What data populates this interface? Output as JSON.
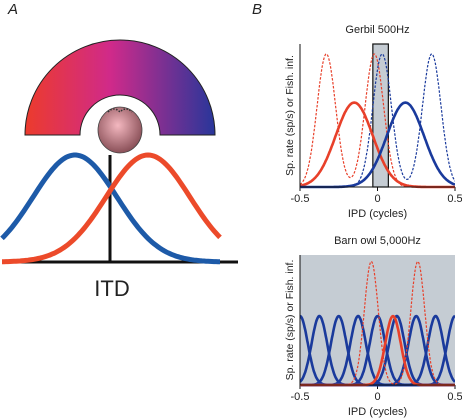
{
  "panel_labels": [
    "A",
    "B"
  ],
  "diagram": {
    "label": "ITD"
  },
  "chart_data": [
    {
      "type": "line",
      "title": "Gerbil 500Hz",
      "xlabel": "IPD (cycles)",
      "ylabel": "Sp. rate (sp/s) or Fish. inf.",
      "xlim": [
        -0.5,
        0.5
      ],
      "xticks": [
        -0.5,
        0,
        0.5
      ],
      "ylim": [
        0,
        1
      ],
      "shade": [
        -0.03,
        0.07
      ],
      "shade_color": "#c5ccd3",
      "series": [
        {
          "color": "#e8402a",
          "dashed": true,
          "width": 0.06,
          "peaks": [
            {
              "x": -0.33,
              "y": 0.93
            },
            {
              "x": -0.02,
              "y": 0.93
            }
          ]
        },
        {
          "color": "#1a3a9c",
          "dashed": true,
          "width": 0.06,
          "peaks": [
            {
              "x": 0.03,
              "y": 0.93
            },
            {
              "x": 0.35,
              "y": 0.93
            }
          ]
        },
        {
          "color": "#e8402a",
          "dashed": false,
          "width": 0.12,
          "peaks": [
            {
              "x": -0.15,
              "y": 0.59
            }
          ]
        },
        {
          "color": "#1a3a9c",
          "dashed": false,
          "width": 0.12,
          "peaks": [
            {
              "x": 0.18,
              "y": 0.59
            }
          ]
        }
      ]
    },
    {
      "type": "line",
      "title": "Barn owl 5,000Hz",
      "xlabel": "IPD (cycles)",
      "ylabel": "Sp. rate (sp/s) or Fish. inf.",
      "xlim": [
        -0.5,
        0.5
      ],
      "xticks": [
        -0.5,
        0,
        0.5
      ],
      "ylim": [
        0,
        1
      ],
      "background": "#c5ccd3",
      "series": [
        {
          "color": "#1a3a9c",
          "dashed": false,
          "width": 0.05,
          "peaks": [
            {
              "x": -0.5,
              "y": 0.53
            },
            {
              "x": -0.375,
              "y": 0.53
            },
            {
              "x": -0.25,
              "y": 0.53
            },
            {
              "x": -0.125,
              "y": 0.53
            },
            {
              "x": 0,
              "y": 0.53
            },
            {
              "x": 0.125,
              "y": 0.53
            },
            {
              "x": 0.25,
              "y": 0.53
            },
            {
              "x": 0.375,
              "y": 0.53
            },
            {
              "x": 0.5,
              "y": 0.53
            }
          ],
          "separate": true
        },
        {
          "color": "#e8402a",
          "dashed": true,
          "width": 0.045,
          "peaks": [
            {
              "x": -0.04,
              "y": 0.95
            },
            {
              "x": 0.26,
              "y": 0.95
            }
          ]
        },
        {
          "color": "#e8402a",
          "dashed": false,
          "width": 0.05,
          "peaks": [
            {
              "x": 0.1,
              "y": 0.53
            }
          ]
        }
      ]
    }
  ]
}
